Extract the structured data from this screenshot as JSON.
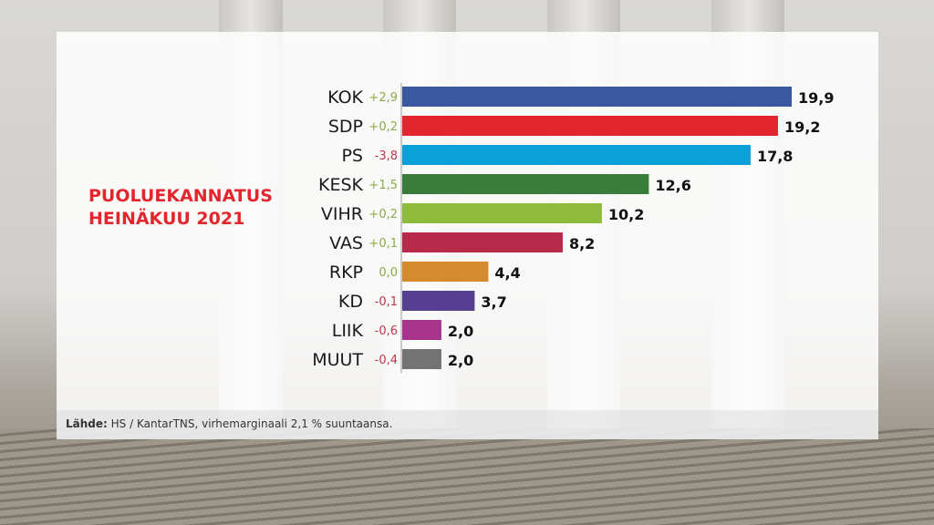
{
  "title_lines": [
    "PUOLUEKANNATUS",
    "HEINÄKUU 2021"
  ],
  "source": {
    "label": "Lähde:",
    "text": " HS / KantarTNS, virhemarginaali 2,1 % suuntaansa."
  },
  "chart_data": {
    "type": "bar",
    "orientation": "horizontal",
    "title": "PUOLUEKANNATUS HEINÄKUU 2021",
    "categories": [
      "KOK",
      "SDP",
      "PS",
      "KESK",
      "VIHR",
      "VAS",
      "RKP",
      "KD",
      "LIIK",
      "MUUT"
    ],
    "values": [
      19.9,
      19.2,
      17.8,
      12.6,
      10.2,
      8.2,
      4.4,
      3.7,
      2.0,
      2.0
    ],
    "value_labels": [
      "19,9",
      "19,2",
      "17,8",
      "12,6",
      "10,2",
      "8,2",
      "4,4",
      "3,7",
      "2,0",
      "2,0"
    ],
    "changes": [
      "+2,9",
      "+0,2",
      "-3,8",
      "+1,5",
      "+0,2",
      "+0,1",
      "0,0",
      "-0,1",
      "-0,6",
      "-0,4"
    ],
    "colors": [
      "#3a58a0",
      "#e3262e",
      "#0ba0d8",
      "#3a7d3a",
      "#8fbb3c",
      "#b82a4a",
      "#d68a2e",
      "#563f93",
      "#a8348e",
      "#737373"
    ],
    "change_colors": {
      "positive": "#8aac4a",
      "negative": "#c0394b"
    },
    "xlim": [
      0,
      20
    ]
  }
}
